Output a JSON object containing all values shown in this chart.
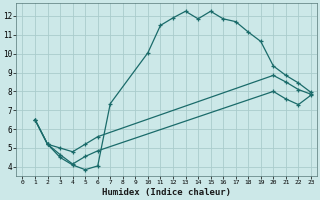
{
  "title": "",
  "xlabel": "Humidex (Indice chaleur)",
  "bg_color": "#cce8e8",
  "grid_color": "#aacccc",
  "line_color": "#1a6b6a",
  "xlim": [
    -0.5,
    23.5
  ],
  "ylim": [
    3.5,
    12.7
  ],
  "xticks": [
    0,
    1,
    2,
    3,
    4,
    5,
    6,
    7,
    8,
    9,
    10,
    11,
    12,
    13,
    14,
    15,
    16,
    17,
    18,
    19,
    20,
    21,
    22,
    23
  ],
  "yticks": [
    4,
    5,
    6,
    7,
    8,
    9,
    10,
    11,
    12
  ],
  "curve1_x": [
    1,
    2,
    3,
    4,
    5,
    6,
    7,
    10,
    11,
    12,
    13,
    14,
    15,
    16,
    17,
    18,
    19,
    20,
    21,
    22,
    23
  ],
  "curve1_y": [
    6.5,
    5.2,
    4.5,
    4.1,
    3.85,
    4.05,
    7.35,
    10.05,
    11.5,
    11.9,
    12.25,
    11.85,
    12.25,
    11.85,
    11.7,
    11.15,
    10.65,
    9.35,
    8.85,
    8.45,
    7.95
  ],
  "curve2_x": [
    1,
    2,
    3,
    4,
    5,
    6,
    20,
    21,
    22,
    23
  ],
  "curve2_y": [
    6.5,
    5.2,
    5.0,
    4.8,
    5.2,
    5.6,
    8.85,
    8.5,
    8.1,
    7.85
  ],
  "curve3_x": [
    1,
    2,
    3,
    4,
    5,
    6,
    20,
    21,
    22,
    23
  ],
  "curve3_y": [
    6.5,
    5.2,
    4.65,
    4.15,
    4.55,
    4.85,
    8.0,
    7.6,
    7.3,
    7.8
  ]
}
